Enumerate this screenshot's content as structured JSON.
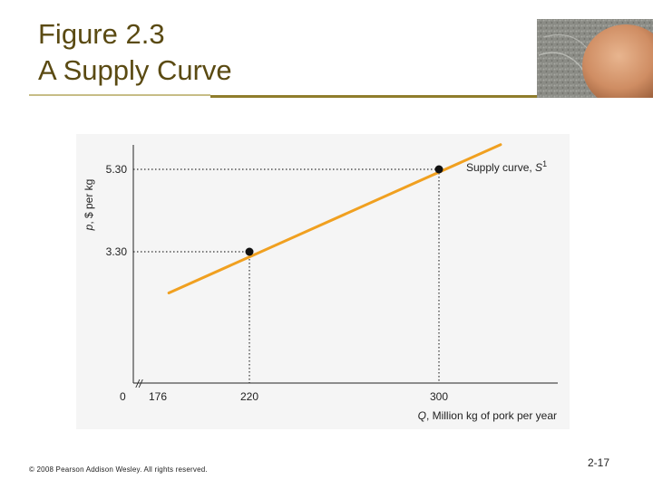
{
  "slide": {
    "title_line1": "Figure 2.3",
    "title_line2": "A Supply Curve",
    "copyright": "© 2008 Pearson Addison Wesley. All rights reserved.",
    "slide_number": "2-17",
    "accent_color": "#8f7d2c",
    "title_color": "#5a4a12",
    "curve_color": "#f0a020"
  },
  "chart_data": {
    "type": "line",
    "ylabel_prefix": "p",
    "ylabel_rest": ", $ per kg",
    "xlabel_prefix": "Q",
    "xlabel_rest": ", Million kg of pork per year",
    "x_ticks": [
      "176",
      "220",
      "300"
    ],
    "y_ticks": [
      "3.30",
      "5.30"
    ],
    "origin_label": "0",
    "axis_break": "//",
    "xlim": [
      176,
      340
    ],
    "ylim": [
      0,
      6.3
    ],
    "series": [
      {
        "label_prefix": "Supply curve, ",
        "label_symbol": "S",
        "label_superscript": "1",
        "x": [
          186,
          326
        ],
        "y": [
          2.3,
          5.9
        ]
      }
    ],
    "highlighted_points": [
      {
        "x": 220,
        "y": 3.3
      },
      {
        "x": 300,
        "y": 5.3
      }
    ],
    "grid": false
  }
}
